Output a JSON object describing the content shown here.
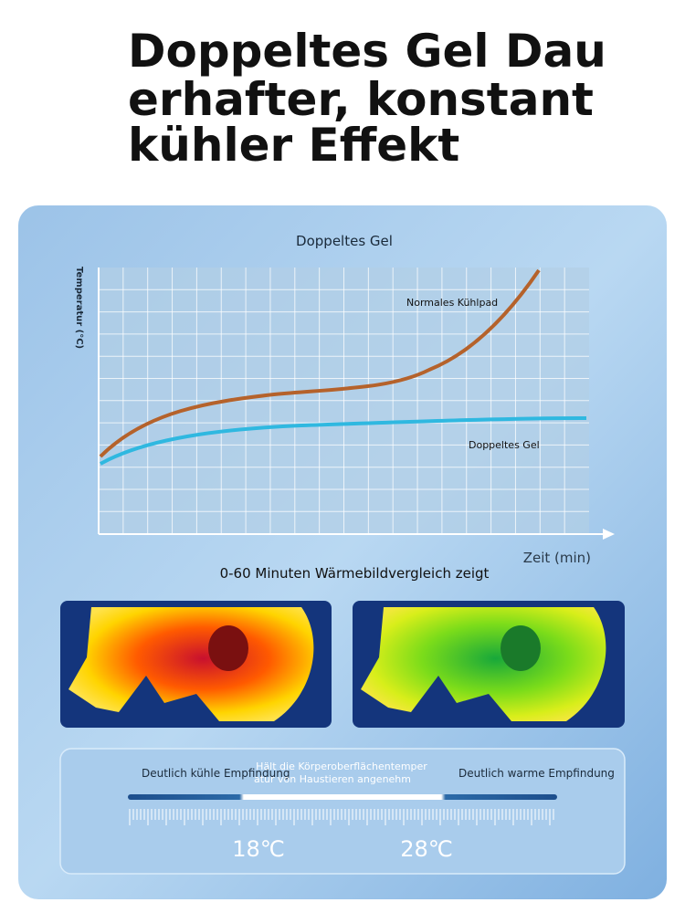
{
  "header": {
    "title_lines": [
      "Doppeltes Gel Dau",
      "erhafter, konstant",
      "kühler Effekt"
    ]
  },
  "chart": {
    "title": "Doppeltes Gel",
    "y_label": "Temperatur (°C)",
    "x_label": "Zeit (min)",
    "series_labels": [
      "Normales Kühlpad",
      "Doppeltes Gel"
    ]
  },
  "caption": "0-60 Minuten Wärmebildvergleich zeigt",
  "scale": {
    "left_label": "Deutlich kühle Empfindung",
    "center_lines": [
      "Hält die Körperoberflächentemper",
      "atur von Haustieren angenehm"
    ],
    "right_label": "Deutlich warme Empfindung",
    "low_temp": "18℃",
    "high_temp": "28℃"
  }
}
